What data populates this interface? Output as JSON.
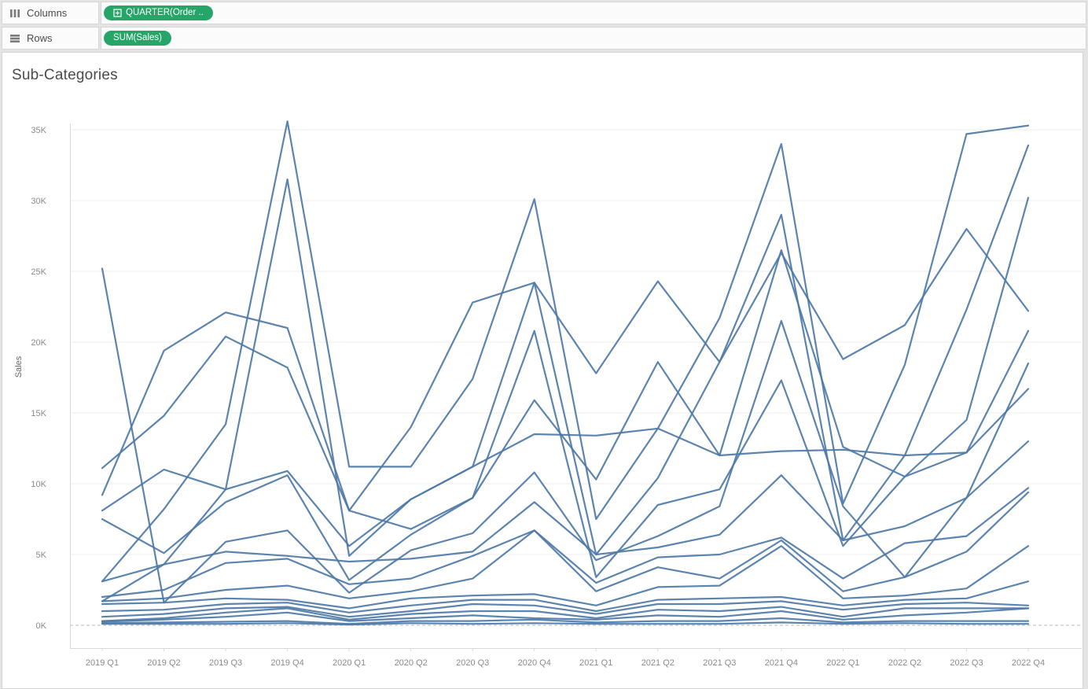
{
  "shelves": {
    "columns": {
      "label": "Columns",
      "pill": "QUARTER(Order ..",
      "pill_has_expand_icon": true
    },
    "rows": {
      "label": "Rows",
      "pill": "SUM(Sales)",
      "pill_has_expand_icon": false
    }
  },
  "sheet": {
    "title": "Sub-Categories"
  },
  "colors": {
    "pill_green": "#25a567",
    "line_blue": "#4e79a7",
    "grid_gray": "#ececec",
    "zero_line_gray": "#b9b9b9",
    "axis_rule_gray": "#d9d9d9",
    "tick_text_gray": "#8a8a8a"
  },
  "chart_data": {
    "type": "line",
    "title": "Sub-Categories",
    "xlabel": "",
    "ylabel": "Sales",
    "y_unit": "K",
    "ylim": [
      0,
      36.5
    ],
    "grid": "horizontal",
    "legend": "none",
    "zero_line": "dashed",
    "y_ticks": [
      "0K",
      "5K",
      "10K",
      "15K",
      "20K",
      "25K",
      "30K",
      "35K"
    ],
    "x_categories": [
      "2019 Q1",
      "2019 Q2",
      "2019 Q3",
      "2019 Q4",
      "2020 Q1",
      "2020 Q2",
      "2020 Q3",
      "2020 Q4",
      "2021 Q1",
      "2021 Q2",
      "2021 Q3",
      "2021 Q4",
      "2022 Q1",
      "2022 Q2",
      "2022 Q3",
      "2022 Q4"
    ],
    "series_note": "17 unlabeled sub-category lines; values in thousands (K), estimated from pixels",
    "series": [
      {
        "name": "line-01",
        "values": [
          3.1,
          8.2,
          14.2,
          35.6,
          11.2,
          11.2,
          17.4,
          30.1,
          7.5,
          13.9,
          21.7,
          34.0,
          8.6,
          18.4,
          34.7,
          35.3
        ]
      },
      {
        "name": "line-02",
        "values": [
          1.7,
          4.3,
          9.6,
          31.5,
          4.9,
          8.9,
          11.2,
          24.2,
          5.0,
          10.4,
          18.6,
          29.0,
          6.0,
          12.0,
          22.3,
          33.9
        ]
      },
      {
        "name": "line-03",
        "values": [
          25.2,
          1.6,
          5.9,
          6.7,
          2.3,
          5.3,
          6.5,
          10.8,
          4.6,
          6.3,
          8.4,
          21.5,
          8.4,
          3.4,
          9.0,
          18.5
        ]
      },
      {
        "name": "line-04",
        "values": [
          9.2,
          19.4,
          22.1,
          21.0,
          8.1,
          14.0,
          22.8,
          24.2,
          17.8,
          24.3,
          18.6,
          26.3,
          18.8,
          21.2,
          28.0,
          22.2
        ]
      },
      {
        "name": "line-05",
        "values": [
          8.1,
          11.0,
          9.6,
          10.9,
          5.6,
          8.9,
          11.2,
          13.5,
          13.4,
          13.9,
          12.0,
          12.3,
          12.4,
          12.0,
          12.2,
          20.8
        ]
      },
      {
        "name": "line-06",
        "values": [
          7.5,
          5.1,
          8.7,
          10.6,
          3.2,
          6.4,
          9.0,
          20.8,
          3.4,
          8.5,
          9.6,
          17.3,
          5.6,
          10.5,
          12.2,
          16.7
        ]
      },
      {
        "name": "line-07",
        "values": [
          11.1,
          14.8,
          20.4,
          18.2,
          8.1,
          6.8,
          9.0,
          15.9,
          10.3,
          18.6,
          12.0,
          26.5,
          12.6,
          10.5,
          14.5,
          30.2
        ]
      },
      {
        "name": "line-08",
        "values": [
          3.1,
          4.3,
          5.2,
          4.9,
          4.5,
          4.7,
          5.2,
          8.7,
          5.0,
          5.5,
          6.4,
          10.6,
          6.0,
          7.0,
          9.0,
          13.0
        ]
      },
      {
        "name": "line-09",
        "values": [
          2.0,
          2.5,
          4.4,
          4.7,
          2.9,
          3.3,
          4.9,
          6.7,
          3.0,
          4.8,
          5.0,
          6.2,
          3.3,
          5.8,
          6.3,
          9.7
        ]
      },
      {
        "name": "line-10",
        "values": [
          1.7,
          1.9,
          2.5,
          2.8,
          1.9,
          2.4,
          3.3,
          6.7,
          2.4,
          4.1,
          3.3,
          6.0,
          2.4,
          3.4,
          5.2,
          9.4
        ]
      },
      {
        "name": "line-11",
        "values": [
          1.5,
          1.6,
          1.9,
          1.8,
          1.2,
          1.9,
          2.1,
          2.2,
          1.4,
          2.7,
          2.8,
          5.6,
          1.9,
          2.1,
          2.6,
          5.6
        ]
      },
      {
        "name": "line-12",
        "values": [
          1.0,
          1.1,
          1.5,
          1.6,
          0.9,
          1.4,
          1.8,
          1.8,
          1.0,
          1.8,
          1.9,
          2.0,
          1.4,
          1.8,
          1.9,
          3.1
        ]
      },
      {
        "name": "line-13",
        "values": [
          0.6,
          0.8,
          1.2,
          1.3,
          0.6,
          1.0,
          1.5,
          1.4,
          0.8,
          1.5,
          1.5,
          1.7,
          1.1,
          1.5,
          1.6,
          1.4
        ]
      },
      {
        "name": "line-14",
        "values": [
          0.3,
          0.5,
          0.9,
          1.2,
          0.4,
          0.8,
          1.0,
          1.0,
          0.5,
          1.1,
          1.0,
          1.3,
          0.6,
          1.2,
          1.2,
          1.2
        ]
      },
      {
        "name": "line-15",
        "values": [
          0.25,
          0.4,
          0.6,
          0.9,
          0.3,
          0.5,
          0.7,
          0.5,
          0.4,
          0.7,
          0.6,
          1.0,
          0.4,
          0.7,
          0.9,
          1.2
        ]
      },
      {
        "name": "line-16",
        "values": [
          0.15,
          0.2,
          0.25,
          0.3,
          0.1,
          0.3,
          0.3,
          0.4,
          0.2,
          0.3,
          0.3,
          0.5,
          0.2,
          0.3,
          0.3,
          0.3
        ]
      },
      {
        "name": "line-17",
        "values": [
          0.1,
          0.1,
          0.1,
          0.15,
          0.05,
          0.15,
          0.1,
          0.15,
          0.1,
          0.1,
          0.1,
          0.2,
          0.1,
          0.15,
          0.1,
          0.1
        ]
      }
    ]
  }
}
